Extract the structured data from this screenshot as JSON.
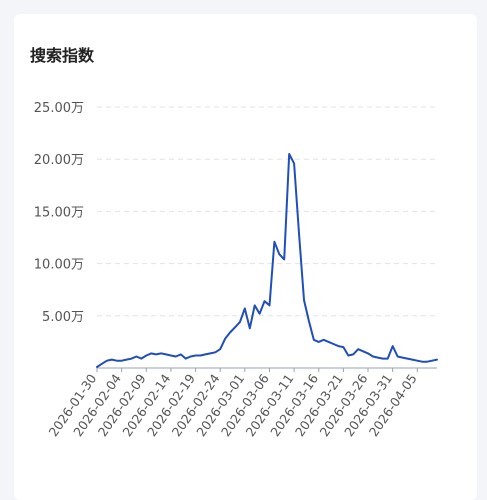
{
  "card": {
    "title": "搜索指数"
  },
  "colors": {
    "line": "#1f4ebd",
    "grid": "#dfe3ea",
    "axis": "#9aa3b0",
    "text": "#555555"
  },
  "chart_data": {
    "type": "line",
    "title": "搜索指数",
    "xlabel": "",
    "ylabel": "",
    "ylim": [
      0,
      25
    ],
    "grid": true,
    "y_unit": "万",
    "y_ticks": [
      0,
      5,
      10,
      15,
      20,
      25
    ],
    "y_tick_labels": [
      "",
      "5.00万",
      "10.00万",
      "15.00万",
      "20.00万",
      "25.00万"
    ],
    "x_tick_labels": [
      "2026-01-30",
      "2026-02-04",
      "2026-02-09",
      "2026-02-14",
      "2026-02-19",
      "2026-02-24",
      "2026-03-01",
      "2026-03-06",
      "2026-03-11",
      "2026-03-16",
      "2026-03-21",
      "2026-03-26",
      "2026-03-31",
      "2026-04-05"
    ],
    "x": [
      "2026-01-30",
      "2026-01-31",
      "2026-02-01",
      "2026-02-02",
      "2026-02-03",
      "2026-02-04",
      "2026-02-05",
      "2026-02-06",
      "2026-02-07",
      "2026-02-08",
      "2026-02-09",
      "2026-02-10",
      "2026-02-11",
      "2026-02-12",
      "2026-02-13",
      "2026-02-14",
      "2026-02-15",
      "2026-02-16",
      "2026-02-17",
      "2026-02-18",
      "2026-02-19",
      "2026-02-20",
      "2026-02-21",
      "2026-02-22",
      "2026-02-23",
      "2026-02-24",
      "2026-02-25",
      "2026-02-26",
      "2026-02-27",
      "2026-02-28",
      "2026-03-01",
      "2026-03-02",
      "2026-03-03",
      "2026-03-04",
      "2026-03-05",
      "2026-03-06",
      "2026-03-07",
      "2026-03-08",
      "2026-03-09",
      "2026-03-10",
      "2026-03-11",
      "2026-03-12",
      "2026-03-13",
      "2026-03-14",
      "2026-03-15",
      "2026-03-16",
      "2026-03-17",
      "2026-03-18",
      "2026-03-19",
      "2026-03-20",
      "2026-03-21",
      "2026-03-22",
      "2026-03-23",
      "2026-03-24",
      "2026-03-25",
      "2026-03-26",
      "2026-03-27",
      "2026-03-28",
      "2026-03-29",
      "2026-03-30",
      "2026-03-31",
      "2026-04-01",
      "2026-04-02",
      "2026-04-03",
      "2026-04-04",
      "2026-04-05",
      "2026-04-06",
      "2026-04-07",
      "2026-04-08",
      "2026-04-09"
    ],
    "series": [
      {
        "name": "",
        "values": [
          0.1,
          0.4,
          0.7,
          0.8,
          0.7,
          0.7,
          0.8,
          0.9,
          1.1,
          0.9,
          1.2,
          1.4,
          1.3,
          1.4,
          1.3,
          1.2,
          1.1,
          1.3,
          0.9,
          1.1,
          1.2,
          1.2,
          1.3,
          1.4,
          1.5,
          1.8,
          2.8,
          3.4,
          3.9,
          4.4,
          5.7,
          3.8,
          6.0,
          5.2,
          6.4,
          6.0,
          12.1,
          10.9,
          10.4,
          20.5,
          19.6,
          12.9,
          6.5,
          4.5,
          2.7,
          2.5,
          2.7,
          2.5,
          2.3,
          2.1,
          2.0,
          1.2,
          1.3,
          1.8,
          1.6,
          1.4,
          1.1,
          1.0,
          0.9,
          0.9,
          2.1,
          1.1,
          1.0,
          0.9,
          0.8,
          0.7,
          0.6,
          0.6,
          0.7,
          0.8
        ]
      }
    ]
  }
}
